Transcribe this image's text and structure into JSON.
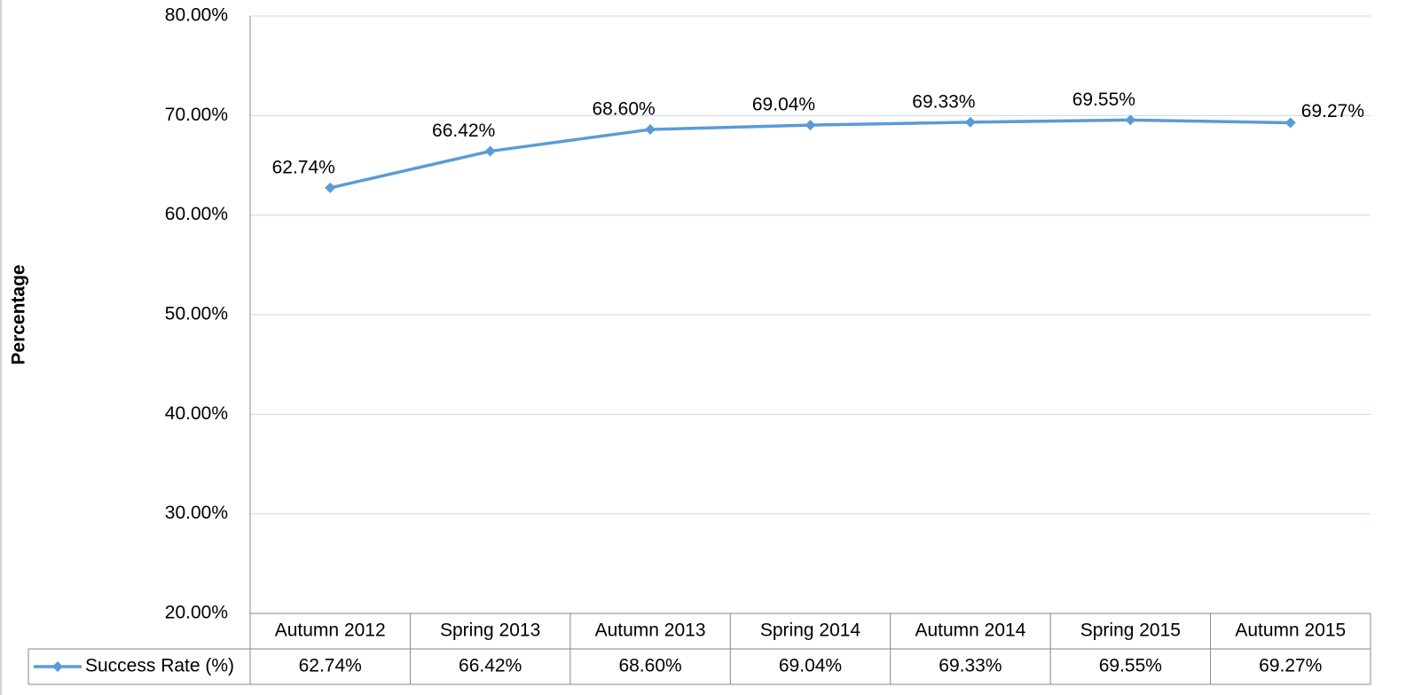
{
  "chart_data": {
    "type": "line",
    "y_label": "Percentage",
    "categories": [
      "Autumn 2012",
      "Spring 2013",
      "Autumn 2013",
      "Spring 2014",
      "Autumn 2014",
      "Spring 2015",
      "Autumn 2015"
    ],
    "series": [
      {
        "name": "Success Rate (%)",
        "color": "#5b9bd5",
        "values": [
          62.74,
          66.42,
          68.6,
          69.04,
          69.33,
          69.55,
          69.27
        ],
        "value_labels": [
          "62.74%",
          "66.42%",
          "68.60%",
          "69.04%",
          "69.33%",
          "69.55%",
          "69.27%"
        ]
      }
    ],
    "ylim": [
      20,
      80
    ],
    "yticks": [
      {
        "value": 20,
        "label": "20.00%"
      },
      {
        "value": 30,
        "label": "30.00%"
      },
      {
        "value": 40,
        "label": "40.00%"
      },
      {
        "value": 50,
        "label": "50.00%"
      },
      {
        "value": 60,
        "label": "60.00%"
      },
      {
        "value": 70,
        "label": "70.00%"
      },
      {
        "value": 80,
        "label": "80.00%"
      }
    ],
    "grid": true,
    "data_table": true
  }
}
